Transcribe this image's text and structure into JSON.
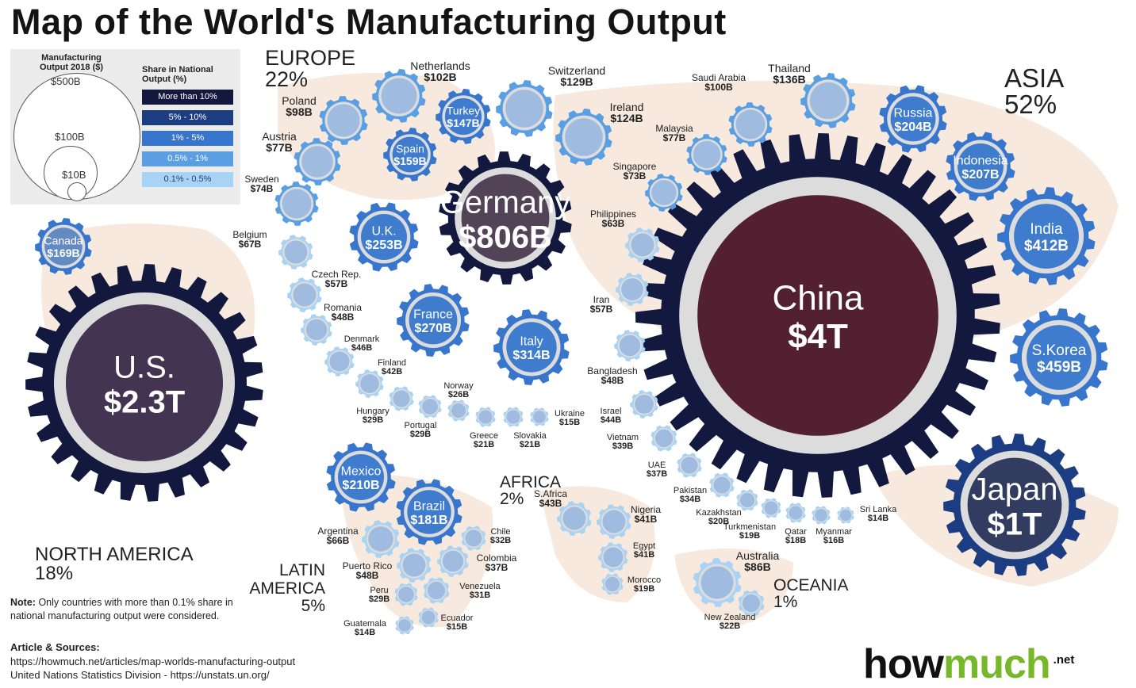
{
  "title": "Map of the World's Manufacturing Output",
  "legend": {
    "size_title": "Manufacturing Output 2018 ($)",
    "sizes": [
      "$500B",
      "$100B",
      "$10B"
    ],
    "share_title": "Share in National Output (%)",
    "share_bins": [
      "More than 10%",
      "5% - 10%",
      "1% - 5%",
      "0.5% - 1%",
      "0.1% - 0.5%"
    ]
  },
  "colors": {
    "share_bins": [
      "#13183f",
      "#1d3d82",
      "#3776cc",
      "#5a9ee3",
      "#a8d3f4"
    ],
    "map": "#f4e2d2",
    "ring": "#dcdcdc"
  },
  "regions": [
    {
      "name": "NORTH AMERICA",
      "share": "18%"
    },
    {
      "name": "EUROPE",
      "share": "22%"
    },
    {
      "name": "ASIA",
      "share": "52%"
    },
    {
      "name": "AFRICA",
      "share": "2%"
    },
    {
      "name": "LATIN AMERICA",
      "share": "5%"
    },
    {
      "name": "OCEANIA",
      "share": "1%"
    }
  ],
  "chart_data": {
    "type": "bubble",
    "title": "Map of the World's Manufacturing Output",
    "unit": "Manufacturing Output 2018 ($)",
    "countries": [
      {
        "name": "U.S.",
        "value": "$2.3T",
        "output_usd_b": 2300,
        "share_bin": "More than 10%",
        "icon": "us-flag",
        "region": "North America"
      },
      {
        "name": "Canada",
        "value": "$169B",
        "output_usd_b": 169,
        "share_bin": "1% - 5%",
        "icon": "canada-flag",
        "region": "North America"
      },
      {
        "name": "Germany",
        "value": "$806B",
        "output_usd_b": 806,
        "share_bin": "More than 10%",
        "icon": "germany-flag",
        "region": "Europe"
      },
      {
        "name": "Italy",
        "value": "$314B",
        "output_usd_b": 314,
        "share_bin": "1% - 5%",
        "icon": "italy-flag",
        "region": "Europe"
      },
      {
        "name": "France",
        "value": "$270B",
        "output_usd_b": 270,
        "share_bin": "1% - 5%",
        "icon": "france-flag",
        "region": "Europe"
      },
      {
        "name": "U.K.",
        "value": "$253B",
        "output_usd_b": 253,
        "share_bin": "1% - 5%",
        "icon": "uk-flag",
        "region": "Europe"
      },
      {
        "name": "Spain",
        "value": "$159B",
        "output_usd_b": 159,
        "share_bin": "1% - 5%",
        "icon": "spain-flag",
        "region": "Europe"
      },
      {
        "name": "Turkey",
        "value": "$147B",
        "output_usd_b": 147,
        "share_bin": "1% - 5%",
        "icon": "turkey-flag",
        "region": "Europe"
      },
      {
        "name": "Switzerland",
        "value": "$129B",
        "output_usd_b": 129,
        "share_bin": "0.5% - 1%",
        "icon": "switzerland-flag",
        "region": "Europe"
      },
      {
        "name": "Ireland",
        "value": "$124B",
        "output_usd_b": 124,
        "share_bin": "0.5% - 1%",
        "icon": "ireland-flag",
        "region": "Europe"
      },
      {
        "name": "Netherlands",
        "value": "$102B",
        "output_usd_b": 102,
        "share_bin": "0.5% - 1%",
        "icon": "netherlands-flag",
        "region": "Europe"
      },
      {
        "name": "Poland",
        "value": "$98B",
        "output_usd_b": 98,
        "share_bin": "0.5% - 1%",
        "icon": "poland-flag",
        "region": "Europe"
      },
      {
        "name": "Austria",
        "value": "$77B",
        "output_usd_b": 77,
        "share_bin": "0.5% - 1%",
        "icon": "austria-flag",
        "region": "Europe"
      },
      {
        "name": "Sweden",
        "value": "$74B",
        "output_usd_b": 74,
        "share_bin": "0.5% - 1%",
        "icon": "sweden-flag",
        "region": "Europe"
      },
      {
        "name": "Belgium",
        "value": "$67B",
        "output_usd_b": 67,
        "share_bin": "0.1% - 0.5%",
        "icon": "belgium-flag",
        "region": "Europe"
      },
      {
        "name": "Czech Rep.",
        "value": "$57B",
        "output_usd_b": 57,
        "share_bin": "0.1% - 0.5%",
        "icon": "czech-flag",
        "region": "Europe"
      },
      {
        "name": "Romania",
        "value": "$48B",
        "output_usd_b": 48,
        "share_bin": "0.1% - 0.5%",
        "icon": "romania-flag",
        "region": "Europe"
      },
      {
        "name": "Denmark",
        "value": "$46B",
        "output_usd_b": 46,
        "share_bin": "0.1% - 0.5%",
        "icon": "denmark-flag",
        "region": "Europe"
      },
      {
        "name": "Finland",
        "value": "$42B",
        "output_usd_b": 42,
        "share_bin": "0.1% - 0.5%",
        "icon": "finland-flag",
        "region": "Europe"
      },
      {
        "name": "Hungary",
        "value": "$29B",
        "output_usd_b": 29,
        "share_bin": "0.1% - 0.5%",
        "icon": "hungary-flag",
        "region": "Europe"
      },
      {
        "name": "Portugal",
        "value": "$29B",
        "output_usd_b": 29,
        "share_bin": "0.1% - 0.5%",
        "icon": "portugal-flag",
        "region": "Europe"
      },
      {
        "name": "Norway",
        "value": "$26B",
        "output_usd_b": 26,
        "share_bin": "0.1% - 0.5%",
        "icon": "norway-flag",
        "region": "Europe"
      },
      {
        "name": "Greece",
        "value": "$21B",
        "output_usd_b": 21,
        "share_bin": "0.1% - 0.5%",
        "icon": "greece-flag",
        "region": "Europe"
      },
      {
        "name": "Slovakia",
        "value": "$21B",
        "output_usd_b": 21,
        "share_bin": "0.1% - 0.5%",
        "icon": "slovakia-flag",
        "region": "Europe"
      },
      {
        "name": "Ukraine",
        "value": "$15B",
        "output_usd_b": 15,
        "share_bin": "0.1% - 0.5%",
        "icon": "ukraine-flag",
        "region": "Europe"
      },
      {
        "name": "China",
        "value": "$4T",
        "output_usd_b": 4000,
        "share_bin": "More than 10%",
        "icon": "china-flag",
        "region": "Asia"
      },
      {
        "name": "Japan",
        "value": "$1T",
        "output_usd_b": 1000,
        "share_bin": "5% - 10%",
        "icon": "japan-flag",
        "region": "Asia"
      },
      {
        "name": "S.Korea",
        "value": "$459B",
        "output_usd_b": 459,
        "share_bin": "1% - 5%",
        "icon": "south-korea-flag",
        "region": "Asia"
      },
      {
        "name": "India",
        "value": "$412B",
        "output_usd_b": 412,
        "share_bin": "1% - 5%",
        "icon": "india-flag",
        "region": "Asia"
      },
      {
        "name": "Indonesia",
        "value": "$207B",
        "output_usd_b": 207,
        "share_bin": "1% - 5%",
        "icon": "indonesia-flag",
        "region": "Asia"
      },
      {
        "name": "Russia",
        "value": "$204B",
        "output_usd_b": 204,
        "share_bin": "1% - 5%",
        "icon": "russia-flag",
        "region": "Asia"
      },
      {
        "name": "Thailand",
        "value": "$136B",
        "output_usd_b": 136,
        "share_bin": "0.5% - 1%",
        "icon": "thailand-flag",
        "region": "Asia"
      },
      {
        "name": "Saudi Arabia",
        "value": "$100B",
        "output_usd_b": 100,
        "share_bin": "0.5% - 1%",
        "icon": "saudi-arabia-flag",
        "region": "Asia"
      },
      {
        "name": "Malaysia",
        "value": "$77B",
        "output_usd_b": 77,
        "share_bin": "0.5% - 1%",
        "icon": "malaysia-flag",
        "region": "Asia"
      },
      {
        "name": "Singapore",
        "value": "$73B",
        "output_usd_b": 73,
        "share_bin": "0.5% - 1%",
        "icon": "singapore-flag",
        "region": "Asia"
      },
      {
        "name": "Philippines",
        "value": "$63B",
        "output_usd_b": 63,
        "share_bin": "0.1% - 0.5%",
        "icon": "philippines-flag",
        "region": "Asia"
      },
      {
        "name": "Iran",
        "value": "$57B",
        "output_usd_b": 57,
        "share_bin": "0.1% - 0.5%",
        "icon": "iran-flag",
        "region": "Asia"
      },
      {
        "name": "Bangladesh",
        "value": "$48B",
        "output_usd_b": 48,
        "share_bin": "0.1% - 0.5%",
        "icon": "bangladesh-flag",
        "region": "Asia"
      },
      {
        "name": "Israel",
        "value": "$44B",
        "output_usd_b": 44,
        "share_bin": "0.1% - 0.5%",
        "icon": "israel-flag",
        "region": "Asia"
      },
      {
        "name": "Vietnam",
        "value": "$39B",
        "output_usd_b": 39,
        "share_bin": "0.1% - 0.5%",
        "icon": "vietnam-flag",
        "region": "Asia"
      },
      {
        "name": "UAE",
        "value": "$37B",
        "output_usd_b": 37,
        "share_bin": "0.1% - 0.5%",
        "icon": "uae-flag",
        "region": "Asia"
      },
      {
        "name": "Pakistan",
        "value": "$34B",
        "output_usd_b": 34,
        "share_bin": "0.1% - 0.5%",
        "icon": "pakistan-flag",
        "region": "Asia"
      },
      {
        "name": "Kazakhstan",
        "value": "$20B",
        "output_usd_b": 20,
        "share_bin": "0.1% - 0.5%",
        "icon": "kazakhstan-flag",
        "region": "Asia"
      },
      {
        "name": "Turkmenistan",
        "value": "$19B",
        "output_usd_b": 19,
        "share_bin": "0.1% - 0.5%",
        "icon": "turkmenistan-flag",
        "region": "Asia"
      },
      {
        "name": "Qatar",
        "value": "$18B",
        "output_usd_b": 18,
        "share_bin": "0.1% - 0.5%",
        "icon": "qatar-flag",
        "region": "Asia"
      },
      {
        "name": "Myanmar",
        "value": "$16B",
        "output_usd_b": 16,
        "share_bin": "0.1% - 0.5%",
        "icon": "myanmar-flag",
        "region": "Asia"
      },
      {
        "name": "Sri Lanka",
        "value": "$14B",
        "output_usd_b": 14,
        "share_bin": "0.1% - 0.5%",
        "icon": "sri-lanka-flag",
        "region": "Asia"
      },
      {
        "name": "S.Africa",
        "value": "$43B",
        "output_usd_b": 43,
        "share_bin": "0.1% - 0.5%",
        "icon": "south-africa-flag",
        "region": "Africa"
      },
      {
        "name": "Nigeria",
        "value": "$41B",
        "output_usd_b": 41,
        "share_bin": "0.1% - 0.5%",
        "icon": "nigeria-flag",
        "region": "Africa"
      },
      {
        "name": "Egypt",
        "value": "$41B",
        "output_usd_b": 41,
        "share_bin": "0.1% - 0.5%",
        "icon": "egypt-flag",
        "region": "Africa"
      },
      {
        "name": "Morocco",
        "value": "$19B",
        "output_usd_b": 19,
        "share_bin": "0.1% - 0.5%",
        "icon": "morocco-flag",
        "region": "Africa"
      },
      {
        "name": "Mexico",
        "value": "$210B",
        "output_usd_b": 210,
        "share_bin": "1% - 5%",
        "icon": "mexico-flag",
        "region": "Latin America"
      },
      {
        "name": "Brazil",
        "value": "$181B",
        "output_usd_b": 181,
        "share_bin": "1% - 5%",
        "icon": "brazil-flag",
        "region": "Latin America"
      },
      {
        "name": "Argentina",
        "value": "$66B",
        "output_usd_b": 66,
        "share_bin": "0.1% - 0.5%",
        "icon": "argentina-flag",
        "region": "Latin America"
      },
      {
        "name": "Puerto Rico",
        "value": "$48B",
        "output_usd_b": 48,
        "share_bin": "0.1% - 0.5%",
        "icon": "puerto-rico-flag",
        "region": "Latin America"
      },
      {
        "name": "Colombia",
        "value": "$37B",
        "output_usd_b": 37,
        "share_bin": "0.1% - 0.5%",
        "icon": "colombia-flag",
        "region": "Latin America"
      },
      {
        "name": "Chile",
        "value": "$32B",
        "output_usd_b": 32,
        "share_bin": "0.1% - 0.5%",
        "icon": "chile-flag",
        "region": "Latin America"
      },
      {
        "name": "Venezuela",
        "value": "$31B",
        "output_usd_b": 31,
        "share_bin": "0.1% - 0.5%",
        "icon": "venezuela-flag",
        "region": "Latin America"
      },
      {
        "name": "Peru",
        "value": "$29B",
        "output_usd_b": 29,
        "share_bin": "0.1% - 0.5%",
        "icon": "peru-flag",
        "region": "Latin America"
      },
      {
        "name": "Ecuador",
        "value": "$15B",
        "output_usd_b": 15,
        "share_bin": "0.1% - 0.5%",
        "icon": "ecuador-flag",
        "region": "Latin America"
      },
      {
        "name": "Guatemala",
        "value": "$14B",
        "output_usd_b": 14,
        "share_bin": "0.1% - 0.5%",
        "icon": "guatemala-flag",
        "region": "Latin America"
      },
      {
        "name": "Australia",
        "value": "$86B",
        "output_usd_b": 86,
        "share_bin": "0.1% - 0.5%",
        "icon": "australia-flag",
        "region": "Oceania"
      },
      {
        "name": "New Zealand",
        "value": "$22B",
        "output_usd_b": 22,
        "share_bin": "0.1% - 0.5%",
        "icon": "new-zealand-flag",
        "region": "Oceania"
      }
    ]
  },
  "note": {
    "label": "Note:",
    "text": "Only countries with more than 0.1% share in national manufacturing output were considered."
  },
  "sources": {
    "label": "Article & Sources:",
    "line1": "https://howmuch.net/articles/map-worlds-manufacturing-output",
    "line2": "United Nations Statistics Division - https://unstats.un.org/"
  },
  "logo": {
    "part1": "how",
    "part2": "much",
    "suffix": ".net"
  }
}
